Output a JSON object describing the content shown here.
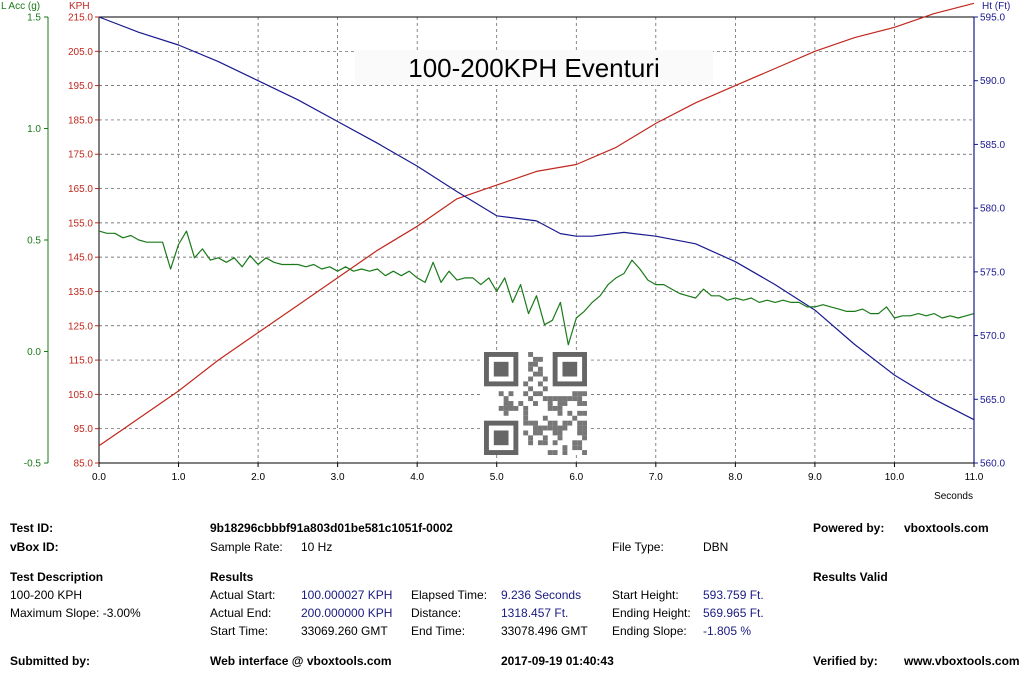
{
  "chart_data": {
    "type": "line",
    "title": "100-200KPH Eventuri",
    "x_unit": "Seconds",
    "xlim": [
      0,
      11
    ],
    "x_ticks": [
      "0.0",
      "1.0",
      "2.0",
      "3.0",
      "4.0",
      "5.0",
      "6.0",
      "7.0",
      "8.0",
      "9.0",
      "10.0",
      "11.0"
    ],
    "axes": {
      "lacc": {
        "label": "L Acc (g)",
        "range": [
          -0.5,
          1.5
        ],
        "ticks": [
          "1.5",
          "1.0",
          "0.5",
          "0.0",
          "-0.5"
        ],
        "color": "#1a7a1a"
      },
      "kph": {
        "label": "KPH",
        "range": [
          85,
          215
        ],
        "ticks": [
          "215.0",
          "205.0",
          "195.0",
          "185.0",
          "175.0",
          "165.0",
          "155.0",
          "145.0",
          "135.0",
          "125.0",
          "115.0",
          "105.0",
          "95.0",
          "85.0"
        ],
        "color": "#c0281e"
      },
      "ht": {
        "label": "Ht (Ft)",
        "range": [
          560,
          595
        ],
        "ticks": [
          "595.0",
          "590.0",
          "585.0",
          "580.0",
          "575.0",
          "570.0",
          "565.0",
          "560.0"
        ],
        "color": "#1a1a90"
      }
    },
    "grid": true,
    "series": [
      {
        "axis": "kph",
        "color": "#c0281e",
        "x": [
          0,
          0.5,
          1,
          1.5,
          2,
          2.5,
          3,
          3.5,
          4,
          4.5,
          5,
          5.5,
          6,
          6.5,
          7,
          7.5,
          8,
          8.5,
          9,
          9.5,
          10,
          10.5,
          11
        ],
        "y": [
          90,
          98,
          106,
          115,
          123,
          131,
          139,
          147,
          154,
          162,
          166,
          170,
          172,
          177,
          184,
          190,
          195,
          200,
          205,
          209,
          212,
          216,
          219
        ]
      },
      {
        "axis": "ht",
        "color": "#1a1a90",
        "x": [
          0,
          0.5,
          1,
          1.5,
          2,
          2.5,
          3,
          3.5,
          4,
          4.5,
          5,
          5.5,
          5.8,
          6,
          6.2,
          6.6,
          7,
          7.5,
          8,
          8.5,
          9,
          9.5,
          10,
          10.5,
          11
        ],
        "y": [
          595,
          593.8,
          592.8,
          591.5,
          590,
          588.5,
          586.8,
          585.1,
          583.3,
          581.3,
          579.4,
          579,
          578,
          577.8,
          577.8,
          578.1,
          577.8,
          577.2,
          575.8,
          574,
          572,
          569.3,
          566.9,
          565,
          563.4
        ]
      },
      {
        "axis": "lacc",
        "color": "#1a7a1a",
        "x": [
          0,
          0.1,
          0.2,
          0.3,
          0.4,
          0.5,
          0.6,
          0.7,
          0.8,
          0.9,
          1.0,
          1.1,
          1.2,
          1.3,
          1.4,
          1.5,
          1.6,
          1.7,
          1.8,
          1.9,
          2.0,
          2.1,
          2.2,
          2.3,
          2.4,
          2.5,
          2.6,
          2.7,
          2.8,
          2.9,
          3.0,
          3.1,
          3.2,
          3.3,
          3.4,
          3.5,
          3.6,
          3.7,
          3.8,
          3.9,
          4.0,
          4.1,
          4.2,
          4.3,
          4.4,
          4.5,
          4.6,
          4.7,
          4.8,
          4.9,
          5.0,
          5.1,
          5.2,
          5.3,
          5.4,
          5.5,
          5.6,
          5.7,
          5.8,
          5.9,
          6.0,
          6.1,
          6.2,
          6.3,
          6.4,
          6.5,
          6.6,
          6.7,
          6.8,
          6.9,
          7.0,
          7.1,
          7.2,
          7.3,
          7.4,
          7.5,
          7.6,
          7.7,
          7.8,
          7.9,
          8.0,
          8.1,
          8.2,
          8.3,
          8.4,
          8.5,
          8.6,
          8.7,
          8.8,
          8.9,
          9.0,
          9.1,
          9.2,
          9.3,
          9.4,
          9.5,
          9.6,
          9.7,
          9.8,
          9.9,
          10.0,
          10.1,
          10.2,
          10.3,
          10.4,
          10.5,
          10.6,
          10.7,
          10.8,
          10.9,
          11.0
        ],
        "y": [
          0.54,
          0.53,
          0.53,
          0.51,
          0.52,
          0.5,
          0.49,
          0.49,
          0.49,
          0.37,
          0.48,
          0.54,
          0.42,
          0.46,
          0.41,
          0.42,
          0.4,
          0.42,
          0.38,
          0.43,
          0.39,
          0.42,
          0.4,
          0.39,
          0.39,
          0.39,
          0.38,
          0.39,
          0.37,
          0.38,
          0.36,
          0.38,
          0.36,
          0.37,
          0.36,
          0.37,
          0.34,
          0.36,
          0.34,
          0.36,
          0.33,
          0.31,
          0.4,
          0.31,
          0.36,
          0.32,
          0.33,
          0.33,
          0.3,
          0.33,
          0.27,
          0.33,
          0.22,
          0.3,
          0.17,
          0.25,
          0.12,
          0.14,
          0.22,
          0.03,
          0.15,
          0.18,
          0.22,
          0.25,
          0.3,
          0.33,
          0.35,
          0.41,
          0.37,
          0.32,
          0.3,
          0.3,
          0.28,
          0.26,
          0.25,
          0.24,
          0.28,
          0.25,
          0.25,
          0.23,
          0.24,
          0.23,
          0.24,
          0.22,
          0.23,
          0.22,
          0.23,
          0.22,
          0.22,
          0.2,
          0.2,
          0.21,
          0.2,
          0.19,
          0.18,
          0.18,
          0.19,
          0.17,
          0.17,
          0.2,
          0.15,
          0.16,
          0.16,
          0.17,
          0.16,
          0.17,
          0.15,
          0.16,
          0.15,
          0.16,
          0.17
        ]
      }
    ]
  },
  "info": {
    "test_id_label": "Test ID:",
    "test_id": "9b18296cbbbf91a803d01be581c1051f-0002",
    "powered_by_label": "Powered by:",
    "powered_by": "vboxtools.com",
    "vbox_id_label": "vBox ID:",
    "sample_rate_label": "Sample Rate:",
    "sample_rate": "10 Hz",
    "file_type_label": "File Type:",
    "file_type": "DBN",
    "test_desc_label": "Test Description",
    "test_desc": "100-200 KPH",
    "max_slope": "Maximum Slope:  -3.00%",
    "results_label": "Results",
    "results_valid": "Results Valid",
    "actual_start_label": "Actual Start:",
    "actual_start": "100.000027 KPH",
    "actual_end_label": "Actual End:",
    "actual_end": "200.000000 KPH",
    "start_time_label": "Start Time:",
    "start_time": "33069.260 GMT",
    "elapsed_label": "Elapsed Time:",
    "elapsed": "9.236 Seconds",
    "distance_label": "Distance:",
    "distance": "1318.457 Ft.",
    "end_time_label": "End Time:",
    "end_time": "33078.496 GMT",
    "start_height_label": "Start Height:",
    "start_height": "593.759 Ft.",
    "end_height_label": "Ending Height:",
    "end_height": "569.965 Ft.",
    "end_slope_label": "Ending Slope:",
    "end_slope": "-1.805 %",
    "submitted_label": "Submitted by:",
    "web_interface": "Web interface @ vboxtools.com",
    "date": "2017-09-19 01:40:43",
    "verified_label": "Verified by:",
    "verified_by": "www.vboxtools.com"
  }
}
